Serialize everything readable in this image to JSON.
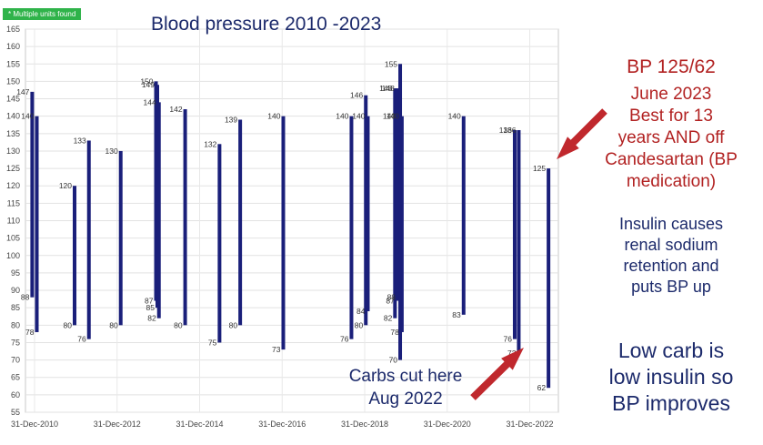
{
  "badge": "* Multiple units found",
  "chart_data": {
    "type": "range-bar",
    "title": "Blood pressure 2010 -2023",
    "ylim": [
      55,
      165
    ],
    "yticks": [
      55,
      60,
      65,
      70,
      75,
      80,
      85,
      90,
      95,
      100,
      105,
      110,
      115,
      120,
      125,
      130,
      135,
      140,
      145,
      150,
      155,
      160,
      165
    ],
    "xticks": [
      "31-Dec-2010",
      "31-Dec-2012",
      "31-Dec-2014",
      "31-Dec-2016",
      "31-Dec-2018",
      "31-Dec-2020",
      "31-Dec-2022"
    ],
    "xlim": [
      "2010-12-31",
      "2023-06-30"
    ],
    "grid": true,
    "series_color": "#1a1f7a",
    "readings": [
      {
        "date": "2010-12-10",
        "systolic": 147,
        "diastolic": 88
      },
      {
        "date": "2011-01-20",
        "systolic": 140,
        "diastolic": 78
      },
      {
        "date": "2011-12-20",
        "systolic": 120,
        "diastolic": 80
      },
      {
        "date": "2012-04-25",
        "systolic": 133,
        "diastolic": 76
      },
      {
        "date": "2013-02-01",
        "systolic": 130,
        "diastolic": 80
      },
      {
        "date": "2013-12-10",
        "systolic": 150,
        "diastolic": 87
      },
      {
        "date": "2013-12-22",
        "systolic": 149,
        "diastolic": 85
      },
      {
        "date": "2014-01-05",
        "systolic": 144,
        "diastolic": 82
      },
      {
        "date": "2014-08-25",
        "systolic": 142,
        "diastolic": 80
      },
      {
        "date": "2015-06-25",
        "systolic": 132,
        "diastolic": 75
      },
      {
        "date": "2015-12-25",
        "systolic": 139,
        "diastolic": 80
      },
      {
        "date": "2017-01-10",
        "systolic": 140,
        "diastolic": 73
      },
      {
        "date": "2018-09-05",
        "systolic": 140,
        "diastolic": 76
      },
      {
        "date": "2019-01-10",
        "systolic": 146,
        "diastolic": 80
      },
      {
        "date": "2019-01-28",
        "systolic": 140,
        "diastolic": 84
      },
      {
        "date": "2019-09-25",
        "systolic": 148,
        "diastolic": 82
      },
      {
        "date": "2019-10-15",
        "systolic": 148,
        "diastolic": 87
      },
      {
        "date": "2019-10-25",
        "systolic": 140,
        "diastolic": 88
      },
      {
        "date": "2019-11-10",
        "systolic": 155,
        "diastolic": 70
      },
      {
        "date": "2019-11-25",
        "systolic": 140,
        "diastolic": 78
      },
      {
        "date": "2021-05-25",
        "systolic": 140,
        "diastolic": 83
      },
      {
        "date": "2022-08-20",
        "systolic": 136,
        "diastolic": 76
      },
      {
        "date": "2022-09-25",
        "systolic": 136,
        "diastolic": 72
      },
      {
        "date": "2023-06-15",
        "systolic": 125,
        "diastolic": 62
      }
    ]
  },
  "annotations": {
    "bp_headline": "BP 125/62",
    "bp_detail": [
      "June 2023",
      "Best for 13",
      "years AND off",
      "Candesartan (BP",
      "medication)"
    ],
    "insulin_note": [
      "Insulin causes",
      "renal sodium",
      "retention and",
      "puts BP up"
    ],
    "low_carb_note": [
      "Low carb is",
      "low insulin so",
      "BP improves"
    ],
    "carbs_note": [
      "Carbs cut here",
      "Aug 2022"
    ]
  },
  "colors": {
    "bar": "#1a1f7a",
    "title": "#1c2a6b",
    "annotation_red": "#b22222",
    "arrow": "#c0282d",
    "badge": "#2fb34a"
  }
}
